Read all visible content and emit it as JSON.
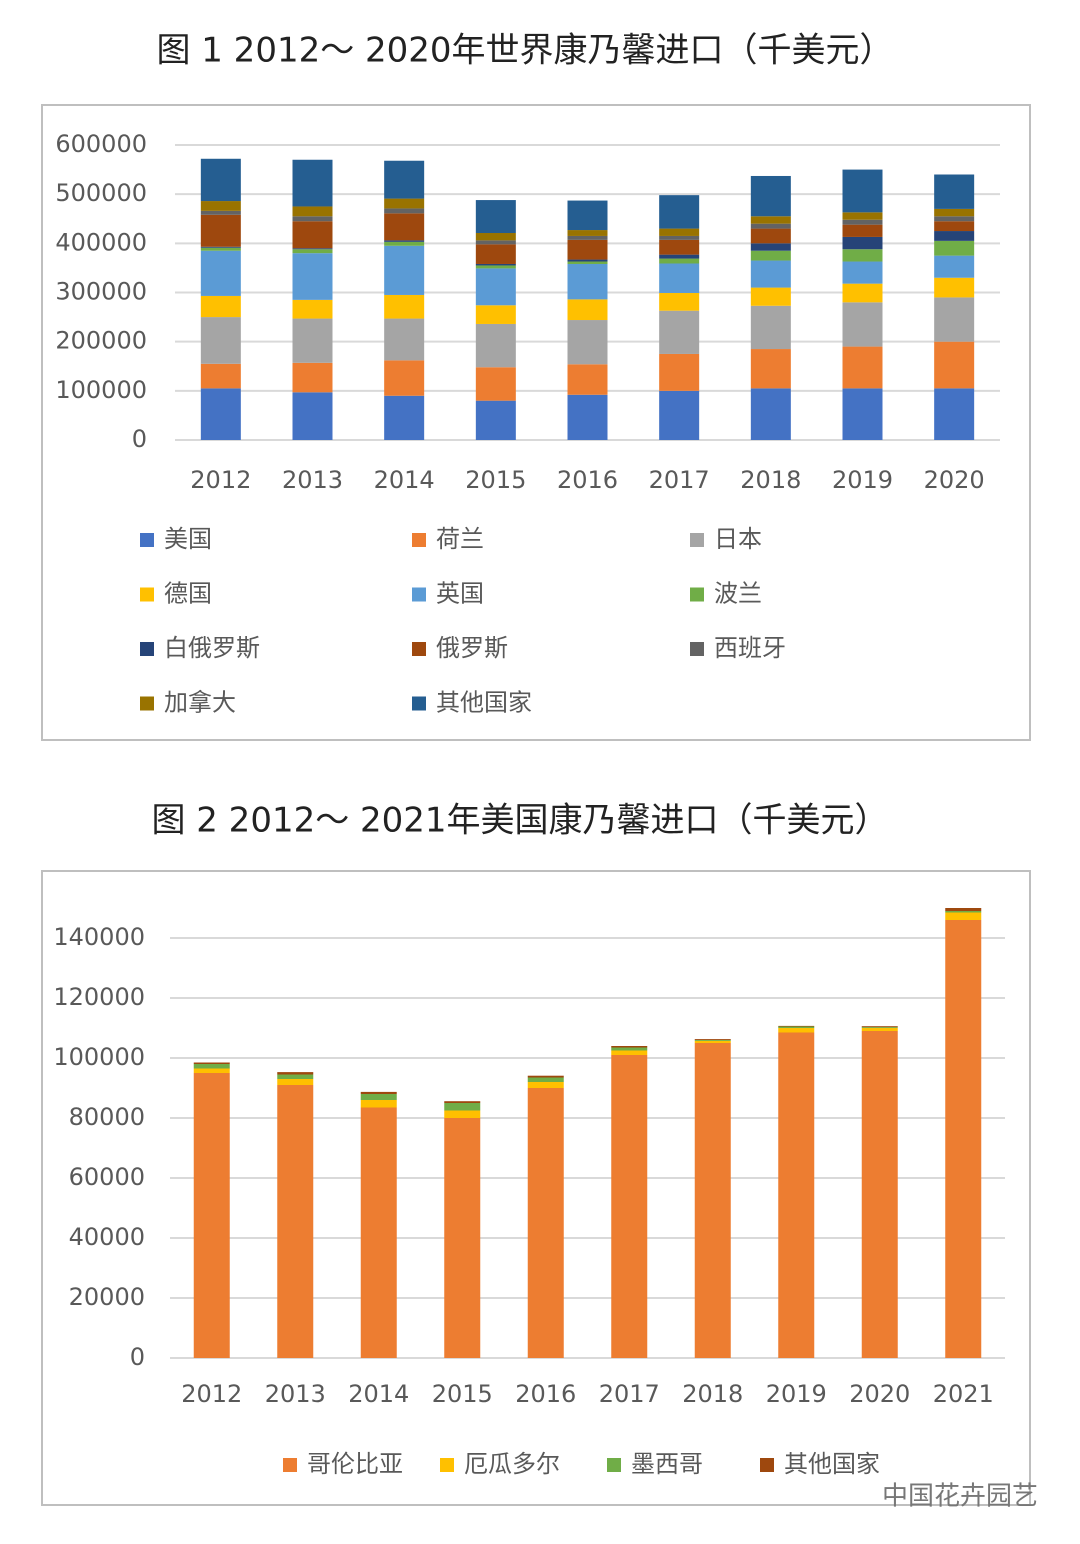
{
  "chart_data": [
    {
      "type": "bar",
      "stacked": true,
      "title": "图 1 2012～ 2020年世界康乃馨进口（千美元）",
      "categories": [
        "2012",
        "2013",
        "2014",
        "2015",
        "2016",
        "2017",
        "2018",
        "2019",
        "2020"
      ],
      "series": [
        {
          "name": "美国",
          "color": "#4472c4",
          "values": [
            105000,
            97000,
            90000,
            80000,
            92000,
            100000,
            105000,
            105000,
            105000
          ]
        },
        {
          "name": "荷兰",
          "color": "#ed7d31",
          "values": [
            50000,
            60000,
            72000,
            68000,
            62000,
            75000,
            80000,
            85000,
            95000
          ]
        },
        {
          "name": "日本",
          "color": "#a5a5a5",
          "values": [
            95000,
            90000,
            85000,
            88000,
            90000,
            88000,
            88000,
            90000,
            90000
          ]
        },
        {
          "name": "德国",
          "color": "#ffc000",
          "values": [
            43000,
            38000,
            48000,
            38000,
            42000,
            36000,
            37000,
            38000,
            40000
          ]
        },
        {
          "name": "英国",
          "color": "#5b9bd5",
          "values": [
            92000,
            95000,
            100000,
            75000,
            72000,
            60000,
            55000,
            45000,
            45000
          ]
        },
        {
          "name": "波兰",
          "color": "#70ad47",
          "values": [
            6000,
            8000,
            8000,
            6000,
            5000,
            10000,
            20000,
            25000,
            30000
          ]
        },
        {
          "name": "白俄罗斯",
          "color": "#264478",
          "values": [
            2000,
            2000,
            3000,
            3000,
            4000,
            8000,
            15000,
            25000,
            20000
          ]
        },
        {
          "name": "俄罗斯",
          "color": "#9e480e",
          "values": [
            65000,
            55000,
            55000,
            40000,
            40000,
            30000,
            30000,
            25000,
            20000
          ]
        },
        {
          "name": "西班牙",
          "color": "#636363",
          "values": [
            8000,
            10000,
            10000,
            8000,
            8000,
            8000,
            10000,
            10000,
            10000
          ]
        },
        {
          "name": "加拿大",
          "color": "#997300",
          "values": [
            20000,
            20000,
            20000,
            15000,
            12000,
            15000,
            15000,
            15000,
            15000
          ]
        },
        {
          "name": "其他国家",
          "color": "#255e91",
          "values": [
            86000,
            95000,
            77000,
            67000,
            60000,
            68000,
            82000,
            87000,
            70000
          ]
        }
      ],
      "ylim": [
        0,
        600000
      ],
      "yticks": [
        0,
        100000,
        200000,
        300000,
        400000,
        500000,
        600000
      ],
      "grid": true,
      "legend": "bottom"
    },
    {
      "type": "bar",
      "stacked": true,
      "title": "图 2 2012～ 2021年美国康乃馨进口（千美元）",
      "categories": [
        "2012",
        "2013",
        "2014",
        "2015",
        "2016",
        "2017",
        "2018",
        "2019",
        "2020",
        "2021"
      ],
      "series": [
        {
          "name": "哥伦比亚",
          "color": "#ed7d31",
          "values": [
            95000,
            91000,
            83500,
            80000,
            90000,
            101000,
            105000,
            108500,
            109000,
            146000
          ]
        },
        {
          "name": "厄瓜多尔",
          "color": "#ffc000",
          "values": [
            1500,
            2000,
            2500,
            2500,
            2000,
            1500,
            700,
            1500,
            1000,
            2500
          ]
        },
        {
          "name": "墨西哥",
          "color": "#70ad47",
          "values": [
            1500,
            1500,
            2000,
            2500,
            1500,
            1000,
            300,
            500,
            300,
            500
          ]
        },
        {
          "name": "其他国家",
          "color": "#9e480e",
          "values": [
            500,
            800,
            700,
            600,
            600,
            500,
            300,
            200,
            300,
            1000
          ]
        }
      ],
      "ylim": [
        0,
        150000
      ],
      "yticks": [
        0,
        20000,
        40000,
        60000,
        80000,
        100000,
        120000,
        140000
      ],
      "grid": true,
      "legend": "bottom"
    }
  ],
  "watermark": "中国花卉园艺"
}
